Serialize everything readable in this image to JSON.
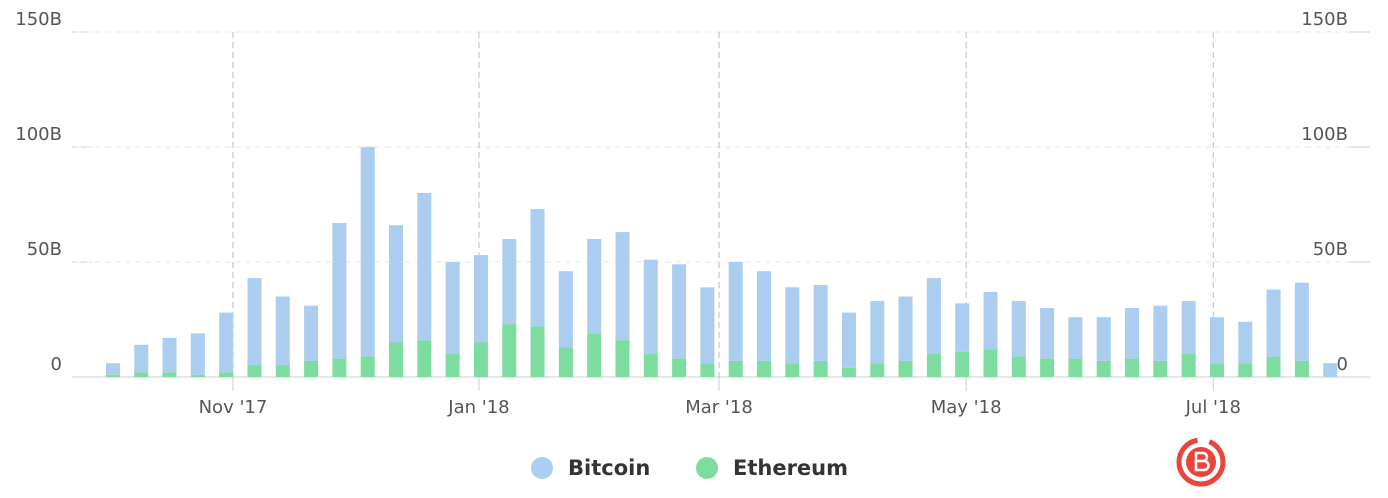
{
  "chart_data": {
    "type": "bar",
    "stacked": true,
    "grid": true,
    "x": [
      0,
      1,
      2,
      3,
      4,
      5,
      6,
      7,
      8,
      9,
      10,
      11,
      12,
      13,
      14,
      15,
      16,
      17,
      18,
      19,
      20,
      21,
      22,
      23,
      24,
      25,
      26,
      27,
      28,
      29,
      30,
      31,
      32,
      33,
      34,
      35,
      36,
      37,
      38,
      39,
      40,
      41,
      42,
      43
    ],
    "xlim": [
      -1.34,
      43.7
    ],
    "xticks": [
      {
        "value": 4.24,
        "label": "Nov '17"
      },
      {
        "value": 12.93,
        "label": "Jan '18"
      },
      {
        "value": 21.41,
        "label": "Mar '18"
      },
      {
        "value": 30.14,
        "label": "May '18"
      },
      {
        "value": 38.87,
        "label": "Jul '18"
      }
    ],
    "ylim": [
      0,
      150
    ],
    "yticks": [
      0,
      {
        "value": 50,
        "label": "50B"
      },
      {
        "value": 100,
        "label": "100B"
      },
      {
        "value": 150,
        "label": "150B"
      }
    ],
    "y2lim": [
      0,
      150
    ],
    "y2ticks": [
      0,
      {
        "value": 50,
        "label": "50B"
      },
      {
        "value": 100,
        "label": "100B"
      },
      {
        "value": 150,
        "label": "150B"
      }
    ],
    "series": [
      {
        "name": "Bitcoin",
        "color": "#abcdf0",
        "values": [
          5,
          12,
          15,
          18,
          26,
          38,
          30,
          24,
          59,
          91,
          51,
          64,
          40,
          38,
          37,
          51,
          33,
          41,
          47,
          41,
          41,
          33,
          43,
          39,
          33,
          33,
          24,
          27,
          28,
          33,
          21,
          25,
          24,
          22,
          18,
          19,
          22,
          24,
          23,
          20,
          18,
          29,
          34,
          6
        ]
      },
      {
        "name": "Ethereum",
        "color": "#7ddca0",
        "values": [
          1,
          2,
          2,
          1,
          2,
          5,
          5,
          7,
          8,
          9,
          15,
          16,
          10,
          15,
          23,
          22,
          13,
          19,
          16,
          10,
          8,
          6,
          7,
          7,
          6,
          7,
          4,
          6,
          7,
          10,
          11,
          12,
          9,
          8,
          8,
          7,
          8,
          7,
          10,
          6,
          6,
          9,
          7,
          0
        ]
      }
    ]
  }
}
